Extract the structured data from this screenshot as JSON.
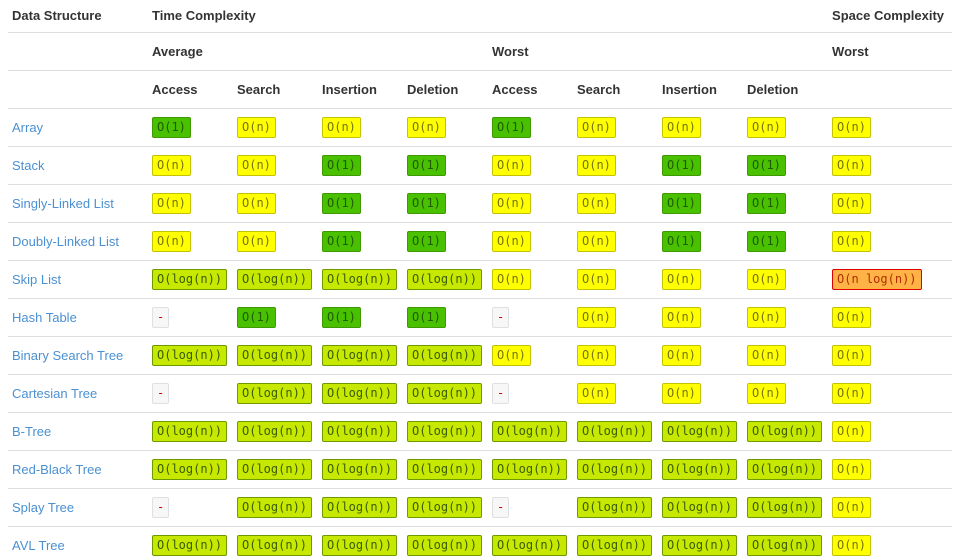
{
  "header": {
    "data_structure": "Data Structure",
    "time_complexity": "Time Complexity",
    "space_complexity": "Space Complexity",
    "average": "Average",
    "worst": "Worst",
    "worst_space": "Worst",
    "ops": [
      "Access",
      "Search",
      "Insertion",
      "Deletion"
    ]
  },
  "palette": {
    "excellent": {
      "bg": "#49C000",
      "border": "#3E9A00",
      "text": "#1E5C00"
    },
    "good": {
      "bg": "#C7E800",
      "border": "#6E9A00",
      "text": "#3A5D00"
    },
    "fair": {
      "bg": "#FFFF00",
      "border": "#C3C300",
      "text": "#75750A"
    },
    "bad": {
      "bg": "#FFB346",
      "border": "#E00000",
      "text": "#B02E00"
    },
    "na": {
      "bg": "#F7F7F7",
      "border": "#E0E0E0",
      "text": "#D40000"
    },
    "link": "#4A90D2",
    "header_text": "#333333",
    "row_border": "#DDDDDD"
  },
  "chart_data": {
    "type": "table",
    "column_groups": [
      "Time Complexity — Average",
      "Time Complexity — Worst",
      "Space Complexity — Worst"
    ],
    "columns": [
      "Data Structure",
      "Average Access",
      "Average Search",
      "Average Insertion",
      "Average Deletion",
      "Worst Access",
      "Worst Search",
      "Worst Insertion",
      "Worst Deletion",
      "Worst Space"
    ],
    "rows": [
      {
        "label": "Array",
        "average": [
          {
            "t": "O(1)",
            "lvl": "excellent"
          },
          {
            "t": "O(n)",
            "lvl": "fair"
          },
          {
            "t": "O(n)",
            "lvl": "fair"
          },
          {
            "t": "O(n)",
            "lvl": "fair"
          }
        ],
        "worst": [
          {
            "t": "O(1)",
            "lvl": "excellent"
          },
          {
            "t": "O(n)",
            "lvl": "fair"
          },
          {
            "t": "O(n)",
            "lvl": "fair"
          },
          {
            "t": "O(n)",
            "lvl": "fair"
          }
        ],
        "space": {
          "t": "O(n)",
          "lvl": "fair"
        }
      },
      {
        "label": "Stack",
        "average": [
          {
            "t": "O(n)",
            "lvl": "fair"
          },
          {
            "t": "O(n)",
            "lvl": "fair"
          },
          {
            "t": "O(1)",
            "lvl": "excellent"
          },
          {
            "t": "O(1)",
            "lvl": "excellent"
          }
        ],
        "worst": [
          {
            "t": "O(n)",
            "lvl": "fair"
          },
          {
            "t": "O(n)",
            "lvl": "fair"
          },
          {
            "t": "O(1)",
            "lvl": "excellent"
          },
          {
            "t": "O(1)",
            "lvl": "excellent"
          }
        ],
        "space": {
          "t": "O(n)",
          "lvl": "fair"
        }
      },
      {
        "label": "Singly-Linked List",
        "average": [
          {
            "t": "O(n)",
            "lvl": "fair"
          },
          {
            "t": "O(n)",
            "lvl": "fair"
          },
          {
            "t": "O(1)",
            "lvl": "excellent"
          },
          {
            "t": "O(1)",
            "lvl": "excellent"
          }
        ],
        "worst": [
          {
            "t": "O(n)",
            "lvl": "fair"
          },
          {
            "t": "O(n)",
            "lvl": "fair"
          },
          {
            "t": "O(1)",
            "lvl": "excellent"
          },
          {
            "t": "O(1)",
            "lvl": "excellent"
          }
        ],
        "space": {
          "t": "O(n)",
          "lvl": "fair"
        }
      },
      {
        "label": "Doubly-Linked List",
        "average": [
          {
            "t": "O(n)",
            "lvl": "fair"
          },
          {
            "t": "O(n)",
            "lvl": "fair"
          },
          {
            "t": "O(1)",
            "lvl": "excellent"
          },
          {
            "t": "O(1)",
            "lvl": "excellent"
          }
        ],
        "worst": [
          {
            "t": "O(n)",
            "lvl": "fair"
          },
          {
            "t": "O(n)",
            "lvl": "fair"
          },
          {
            "t": "O(1)",
            "lvl": "excellent"
          },
          {
            "t": "O(1)",
            "lvl": "excellent"
          }
        ],
        "space": {
          "t": "O(n)",
          "lvl": "fair"
        }
      },
      {
        "label": "Skip List",
        "average": [
          {
            "t": "O(log(n))",
            "lvl": "good"
          },
          {
            "t": "O(log(n))",
            "lvl": "good"
          },
          {
            "t": "O(log(n))",
            "lvl": "good"
          },
          {
            "t": "O(log(n))",
            "lvl": "good"
          }
        ],
        "worst": [
          {
            "t": "O(n)",
            "lvl": "fair"
          },
          {
            "t": "O(n)",
            "lvl": "fair"
          },
          {
            "t": "O(n)",
            "lvl": "fair"
          },
          {
            "t": "O(n)",
            "lvl": "fair"
          }
        ],
        "space": {
          "t": "O(n log(n))",
          "lvl": "bad"
        }
      },
      {
        "label": "Hash Table",
        "average": [
          {
            "t": "-",
            "lvl": "na"
          },
          {
            "t": "O(1)",
            "lvl": "excellent"
          },
          {
            "t": "O(1)",
            "lvl": "excellent"
          },
          {
            "t": "O(1)",
            "lvl": "excellent"
          }
        ],
        "worst": [
          {
            "t": "-",
            "lvl": "na"
          },
          {
            "t": "O(n)",
            "lvl": "fair"
          },
          {
            "t": "O(n)",
            "lvl": "fair"
          },
          {
            "t": "O(n)",
            "lvl": "fair"
          }
        ],
        "space": {
          "t": "O(n)",
          "lvl": "fair"
        }
      },
      {
        "label": "Binary Search Tree",
        "average": [
          {
            "t": "O(log(n))",
            "lvl": "good"
          },
          {
            "t": "O(log(n))",
            "lvl": "good"
          },
          {
            "t": "O(log(n))",
            "lvl": "good"
          },
          {
            "t": "O(log(n))",
            "lvl": "good"
          }
        ],
        "worst": [
          {
            "t": "O(n)",
            "lvl": "fair"
          },
          {
            "t": "O(n)",
            "lvl": "fair"
          },
          {
            "t": "O(n)",
            "lvl": "fair"
          },
          {
            "t": "O(n)",
            "lvl": "fair"
          }
        ],
        "space": {
          "t": "O(n)",
          "lvl": "fair"
        }
      },
      {
        "label": "Cartesian Tree",
        "average": [
          {
            "t": "-",
            "lvl": "na"
          },
          {
            "t": "O(log(n))",
            "lvl": "good"
          },
          {
            "t": "O(log(n))",
            "lvl": "good"
          },
          {
            "t": "O(log(n))",
            "lvl": "good"
          }
        ],
        "worst": [
          {
            "t": "-",
            "lvl": "na"
          },
          {
            "t": "O(n)",
            "lvl": "fair"
          },
          {
            "t": "O(n)",
            "lvl": "fair"
          },
          {
            "t": "O(n)",
            "lvl": "fair"
          }
        ],
        "space": {
          "t": "O(n)",
          "lvl": "fair"
        }
      },
      {
        "label": "B-Tree",
        "average": [
          {
            "t": "O(log(n))",
            "lvl": "good"
          },
          {
            "t": "O(log(n))",
            "lvl": "good"
          },
          {
            "t": "O(log(n))",
            "lvl": "good"
          },
          {
            "t": "O(log(n))",
            "lvl": "good"
          }
        ],
        "worst": [
          {
            "t": "O(log(n))",
            "lvl": "good"
          },
          {
            "t": "O(log(n))",
            "lvl": "good"
          },
          {
            "t": "O(log(n))",
            "lvl": "good"
          },
          {
            "t": "O(log(n))",
            "lvl": "good"
          }
        ],
        "space": {
          "t": "O(n)",
          "lvl": "fair"
        }
      },
      {
        "label": "Red-Black Tree",
        "average": [
          {
            "t": "O(log(n))",
            "lvl": "good"
          },
          {
            "t": "O(log(n))",
            "lvl": "good"
          },
          {
            "t": "O(log(n))",
            "lvl": "good"
          },
          {
            "t": "O(log(n))",
            "lvl": "good"
          }
        ],
        "worst": [
          {
            "t": "O(log(n))",
            "lvl": "good"
          },
          {
            "t": "O(log(n))",
            "lvl": "good"
          },
          {
            "t": "O(log(n))",
            "lvl": "good"
          },
          {
            "t": "O(log(n))",
            "lvl": "good"
          }
        ],
        "space": {
          "t": "O(n)",
          "lvl": "fair"
        }
      },
      {
        "label": "Splay Tree",
        "average": [
          {
            "t": "-",
            "lvl": "na"
          },
          {
            "t": "O(log(n))",
            "lvl": "good"
          },
          {
            "t": "O(log(n))",
            "lvl": "good"
          },
          {
            "t": "O(log(n))",
            "lvl": "good"
          }
        ],
        "worst": [
          {
            "t": "-",
            "lvl": "na"
          },
          {
            "t": "O(log(n))",
            "lvl": "good"
          },
          {
            "t": "O(log(n))",
            "lvl": "good"
          },
          {
            "t": "O(log(n))",
            "lvl": "good"
          }
        ],
        "space": {
          "t": "O(n)",
          "lvl": "fair"
        }
      },
      {
        "label": "AVL Tree",
        "average": [
          {
            "t": "O(log(n))",
            "lvl": "good"
          },
          {
            "t": "O(log(n))",
            "lvl": "good"
          },
          {
            "t": "O(log(n))",
            "lvl": "good"
          },
          {
            "t": "O(log(n))",
            "lvl": "good"
          }
        ],
        "worst": [
          {
            "t": "O(log(n))",
            "lvl": "good"
          },
          {
            "t": "O(log(n))",
            "lvl": "good"
          },
          {
            "t": "O(log(n))",
            "lvl": "good"
          },
          {
            "t": "O(log(n))",
            "lvl": "good"
          }
        ],
        "space": {
          "t": "O(n)",
          "lvl": "fair"
        }
      }
    ]
  }
}
